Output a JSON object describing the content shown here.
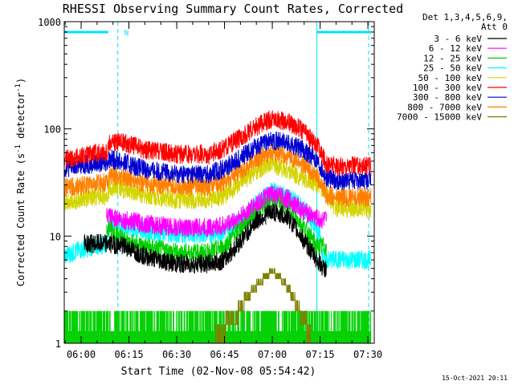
{
  "chart_data": {
    "type": "line",
    "title": "RHESSI Observing Summary Count Rates, Corrected",
    "xlabel": "Start Time (02-Nov-08 05:54:42)",
    "ylabel": "Corrected Count Rate (s⁻¹ detector⁻¹)",
    "ylabel_parts": {
      "main": "Corrected Count Rate (s",
      "sup1": "-1",
      "mid": " detector",
      "sup2": "-1",
      "end": ")"
    },
    "y_scale": "log",
    "ylim": [
      1,
      1000
    ],
    "yticks": [
      1,
      10,
      100,
      1000
    ],
    "ytick_labels": [
      "1",
      "10",
      "100",
      "1000"
    ],
    "xlim": [
      "05:54:42",
      "07:32:00"
    ],
    "xticks": [
      "06:00",
      "06:15",
      "06:30",
      "06:45",
      "07:00",
      "07:15",
      "07:30"
    ],
    "legend_placement": "right",
    "legend_header": [
      "Det 1,3,4,5,6,9,",
      "Att 0"
    ],
    "footer_date": "15-Oct-2021 20:11",
    "annotation": "N",
    "night_intervals": [
      [
        "05:54:42",
        "06:08:30"
      ],
      [
        "07:14:00",
        "07:31:00"
      ]
    ],
    "night_level": 800,
    "series": [
      {
        "name": "3 - 6 keV",
        "color": "#000000",
        "x": [
          "06:01",
          "06:08",
          "06:09",
          "06:14",
          "06:20",
          "06:30",
          "06:40",
          "06:45",
          "06:50",
          "06:55",
          "07:00",
          "07:05",
          "07:10",
          "07:14",
          "07:16",
          "07:17"
        ],
        "y": [
          8.5,
          8.5,
          8.5,
          8,
          6.5,
          5.5,
          5.5,
          6,
          9,
          14,
          17,
          15,
          9,
          6,
          5,
          5
        ]
      },
      {
        "name": "6 - 12 keV",
        "color": "#ff00ff",
        "x": [
          "06:08",
          "06:09",
          "06:14",
          "06:20",
          "06:30",
          "06:40",
          "06:45",
          "06:50",
          "06:55",
          "07:00",
          "07:05",
          "07:10",
          "07:15",
          "07:17"
        ],
        "y": [
          15,
          15,
          14,
          13,
          12,
          12,
          12.5,
          15,
          20,
          25,
          22,
          17,
          14,
          14
        ]
      },
      {
        "name": "12 - 25 keV",
        "color": "#00d000",
        "x": [
          "06:08",
          "06:09",
          "06:14",
          "06:20",
          "06:30",
          "06:40",
          "06:45",
          "06:50",
          "06:55",
          "07:00",
          "07:05",
          "07:10",
          "07:14",
          "07:17"
        ],
        "y": [
          12,
          12,
          9,
          8,
          7,
          7,
          8,
          12,
          17,
          22,
          19,
          12,
          8,
          8
        ]
      },
      {
        "name": "25 - 50 keV",
        "color": "#00ffff",
        "x": [
          "05:54:42",
          "06:00",
          "06:08",
          "06:09",
          "06:14",
          "06:20",
          "06:30",
          "06:40",
          "06:45",
          "06:50",
          "06:55",
          "07:00",
          "07:05",
          "07:10",
          "07:15",
          "07:16",
          "07:20",
          "07:30",
          "07:31"
        ],
        "y": [
          6.5,
          7.5,
          8.5,
          13,
          12,
          11,
          10.5,
          10.5,
          11,
          14,
          20,
          26,
          23,
          18,
          10,
          6,
          6,
          6,
          6
        ]
      },
      {
        "name": "50 - 100 keV",
        "color": "#d4d400",
        "x": [
          "05:54:42",
          "06:05",
          "06:08",
          "06:09",
          "06:15",
          "06:20",
          "06:30",
          "06:40",
          "06:45",
          "06:50",
          "06:55",
          "07:00",
          "07:05",
          "07:10",
          "07:15",
          "07:20",
          "07:30",
          "07:31"
        ],
        "y": [
          21,
          23,
          24,
          29,
          27,
          24,
          22,
          22,
          24,
          31,
          41,
          47,
          41,
          34,
          30,
          18,
          18,
          18
        ]
      },
      {
        "name": "100 - 300 keV",
        "color": "#ff0000",
        "x": [
          "05:54:42",
          "06:05",
          "06:08",
          "06:09",
          "06:15",
          "06:20",
          "06:30",
          "06:40",
          "06:45",
          "06:50",
          "06:55",
          "07:00",
          "07:05",
          "07:10",
          "07:14",
          "07:17",
          "07:20",
          "07:30",
          "07:31"
        ],
        "y": [
          52,
          60,
          62,
          77,
          72,
          64,
          58,
          58,
          66,
          83,
          105,
          125,
          115,
          95,
          70,
          47,
          45,
          45,
          45
        ]
      },
      {
        "name": "300 - 800 keV",
        "color": "#0000d0",
        "x": [
          "05:54:42",
          "06:05",
          "06:08",
          "06:09",
          "06:15",
          "06:20",
          "06:30",
          "06:40",
          "06:45",
          "06:50",
          "06:55",
          "07:00",
          "07:05",
          "07:10",
          "07:14",
          "07:17",
          "07:20",
          "07:30",
          "07:31"
        ],
        "y": [
          43,
          48,
          49,
          53,
          47,
          42,
          38,
          38,
          43,
          54,
          68,
          79,
          73,
          63,
          52,
          35,
          33,
          33,
          33
        ]
      },
      {
        "name": "800 - 7000 keV",
        "color": "#ff8000",
        "x": [
          "05:54:42",
          "06:05",
          "06:08",
          "06:09",
          "06:15",
          "06:20",
          "06:30",
          "06:40",
          "06:45",
          "06:50",
          "06:55",
          "07:00",
          "07:05",
          "07:10",
          "07:14",
          "07:17",
          "07:20",
          "07:30",
          "07:31"
        ],
        "y": [
          28,
          31,
          32,
          37,
          35,
          31,
          29,
          29,
          32,
          40,
          52,
          60,
          55,
          46,
          36,
          24,
          23,
          23,
          23
        ]
      },
      {
        "name": "7000 - 15000 keV",
        "color": "#808000",
        "x": [
          "06:42",
          "06:48",
          "06:52",
          "06:56",
          "07:00",
          "07:04",
          "07:08",
          "07:12"
        ],
        "y": [
          1,
          1.5,
          2.5,
          3.5,
          4.5,
          3.5,
          2,
          1
        ]
      }
    ]
  }
}
